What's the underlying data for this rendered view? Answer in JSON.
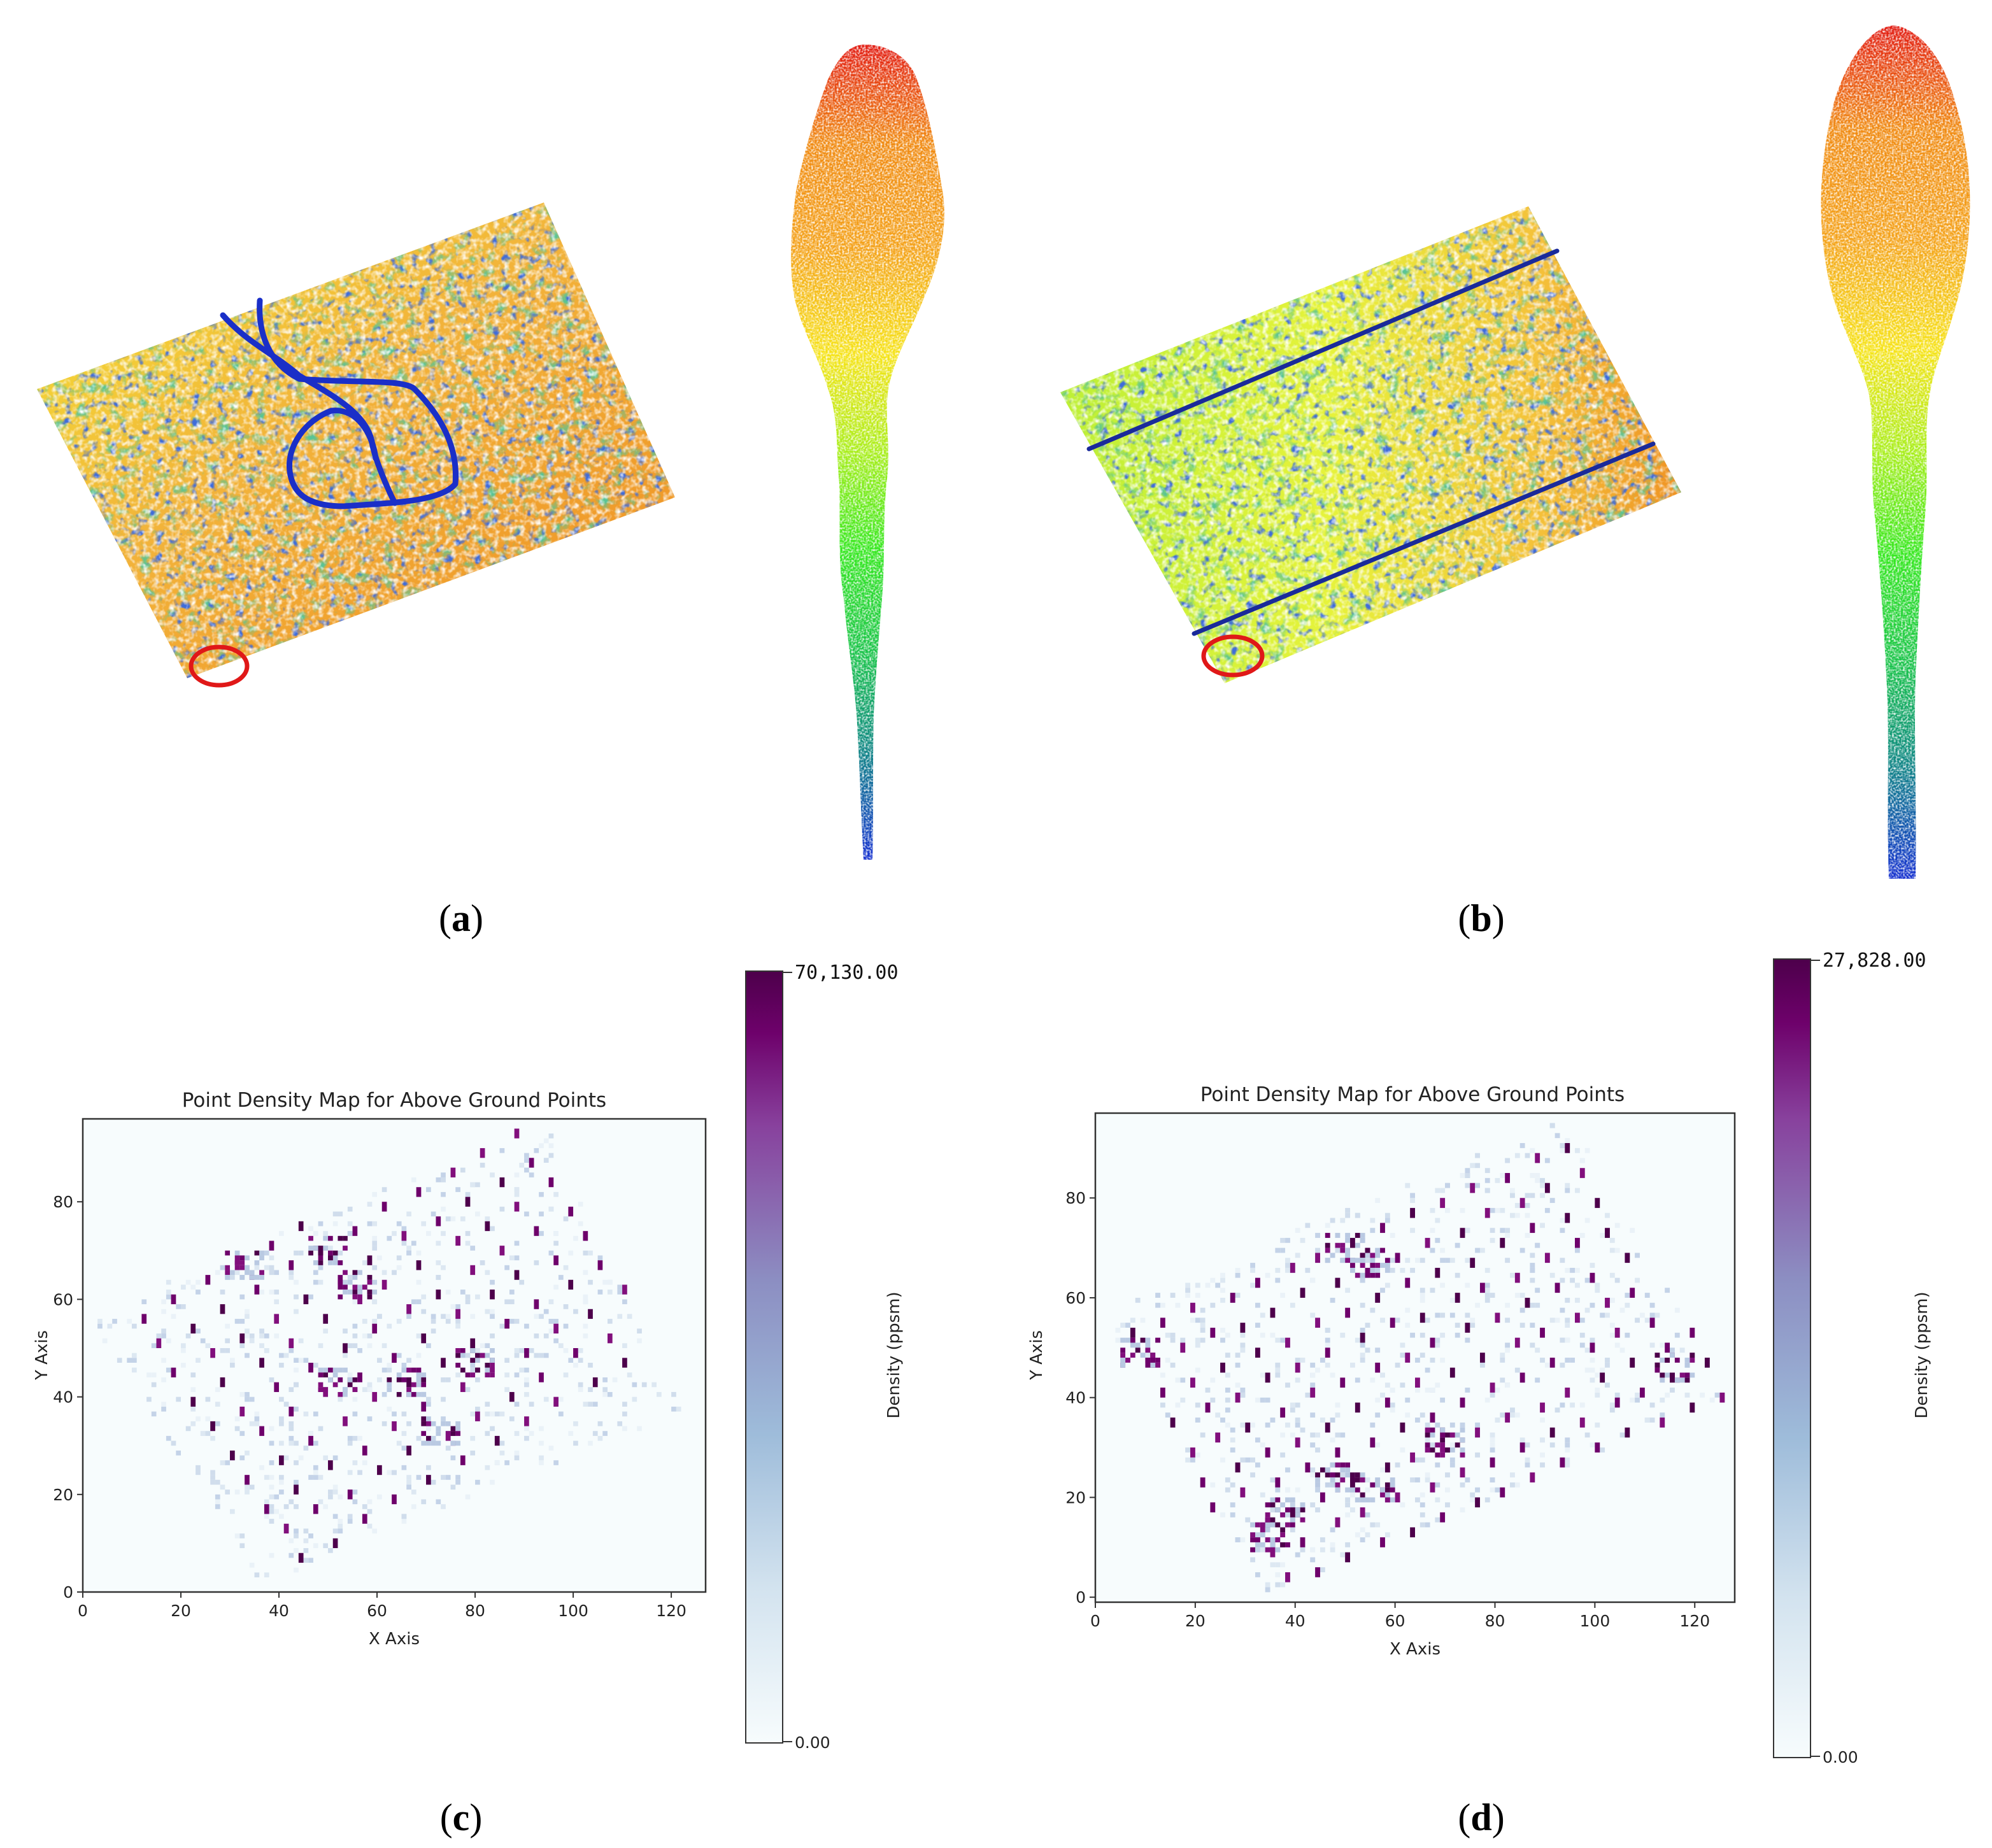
{
  "panels": {
    "a": {
      "caption": "a"
    },
    "b": {
      "caption": "b"
    },
    "c": {
      "caption": "c"
    },
    "d": {
      "caption": "d"
    }
  },
  "chart_data": [
    {
      "panel": "c",
      "type": "heatmap",
      "title": "Point Density Map for Above Ground Points",
      "xlabel": "X Axis",
      "ylabel": "Y Axis",
      "xlim": [
        0,
        127
      ],
      "ylim": [
        0,
        97
      ],
      "xticks": [
        0,
        20,
        40,
        60,
        80,
        100,
        120
      ],
      "yticks": [
        0,
        20,
        40,
        60,
        80
      ],
      "colorbar": {
        "label": "Density (ppsm)",
        "min": 0,
        "max": 70130,
        "min_label": "0.00",
        "max_label": "70,130.00",
        "colormap": "BuPu"
      },
      "footprint": [
        [
          1,
          57
        ],
        [
          94,
          96
        ],
        [
          122,
          37
        ],
        [
          36,
          2
        ]
      ],
      "grid": {
        "origin": [
          12,
          55
        ],
        "u": [
          6.6,
          4.0
        ],
        "v": [
          3.6,
          -5.4
        ],
        "iu": [
          0,
          14
        ],
        "iv": [
          0,
          9
        ]
      },
      "clusters": [
        [
          50,
          70
        ],
        [
          56,
          63
        ],
        [
          52,
          43
        ],
        [
          66,
          43
        ],
        [
          73,
          33
        ],
        [
          80,
          47
        ],
        [
          33,
          67
        ]
      ]
    },
    {
      "panel": "d",
      "type": "heatmap",
      "title": "Point Density Map for Above Ground Points",
      "xlabel": "X Axis",
      "ylabel": "Y Axis",
      "xlim": [
        0,
        128
      ],
      "ylim": [
        -1,
        97
      ],
      "xticks": [
        0,
        20,
        40,
        60,
        80,
        100,
        120
      ],
      "yticks": [
        0,
        20,
        40,
        60,
        80
      ],
      "colorbar": {
        "label": "Density (ppsm)",
        "min": 0,
        "max": 27828,
        "min_label": "0.00",
        "max_label": "27,828.00",
        "colormap": "BuPu"
      },
      "footprint": [
        [
          1,
          57
        ],
        [
          94,
          96
        ],
        [
          127,
          40
        ],
        [
          34,
          0
        ]
      ],
      "grid": {
        "origin": [
          8,
          52
        ],
        "u": [
          6.2,
          2.7
        ],
        "v": [
          2.7,
          -5.8
        ],
        "iu": [
          0,
          17
        ],
        "iv": [
          0,
          9
        ]
      },
      "clusters": [
        [
          35,
          12
        ],
        [
          38,
          17
        ],
        [
          48,
          24
        ],
        [
          56,
          22
        ],
        [
          70,
          31
        ],
        [
          50,
          70
        ],
        [
          55,
          67
        ],
        [
          116,
          46
        ],
        [
          9,
          49
        ]
      ]
    }
  ]
}
